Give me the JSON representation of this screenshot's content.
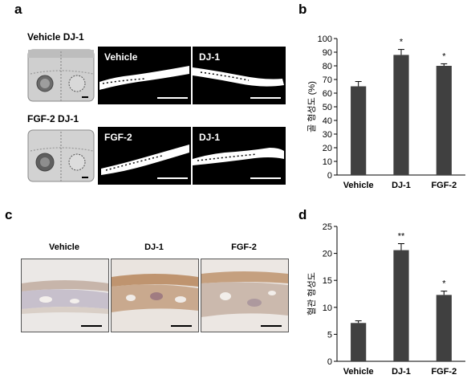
{
  "panels": {
    "a": {
      "letter": "a",
      "rows": [
        {
          "header": "Vehicle   DJ-1",
          "images": [
            "Vehicle",
            "DJ-1"
          ]
        },
        {
          "header": "FGF-2    DJ-1",
          "images": [
            "FGF-2",
            "DJ-1"
          ]
        }
      ]
    },
    "b": {
      "letter": "b"
    },
    "c": {
      "letter": "c",
      "labels": [
        "Vehicle",
        "DJ-1",
        "FGF-2"
      ]
    },
    "d": {
      "letter": "d"
    }
  },
  "colors": {
    "bar": "#404040",
    "axis": "#000000",
    "ct_background": "#000000",
    "bone": "#ffffff",
    "histo_stain": "#b07a4a"
  },
  "chart_data": [
    {
      "type": "bar",
      "id": "b",
      "categories": [
        "Vehicle",
        "DJ-1",
        "FGF-2"
      ],
      "values": [
        65,
        88,
        80
      ],
      "errors": [
        3.5,
        4,
        1.5
      ],
      "significance": [
        "",
        "*",
        "*"
      ],
      "ylabel": "골 형성도 (%)",
      "ylim": [
        0,
        100
      ],
      "yticks": [
        0,
        10,
        20,
        30,
        40,
        50,
        60,
        70,
        80,
        90,
        100
      ],
      "grid": false
    },
    {
      "type": "bar",
      "id": "d",
      "categories": [
        "Vehicle",
        "DJ-1",
        "FGF-2"
      ],
      "values": [
        7.1,
        20.6,
        12.3
      ],
      "errors": [
        0.4,
        1.2,
        0.7
      ],
      "significance": [
        "",
        "**",
        "*"
      ],
      "ylabel": "혈관 형성도",
      "ylim": [
        0,
        25
      ],
      "yticks": [
        0,
        5,
        10,
        15,
        20,
        25
      ],
      "grid": false
    }
  ]
}
